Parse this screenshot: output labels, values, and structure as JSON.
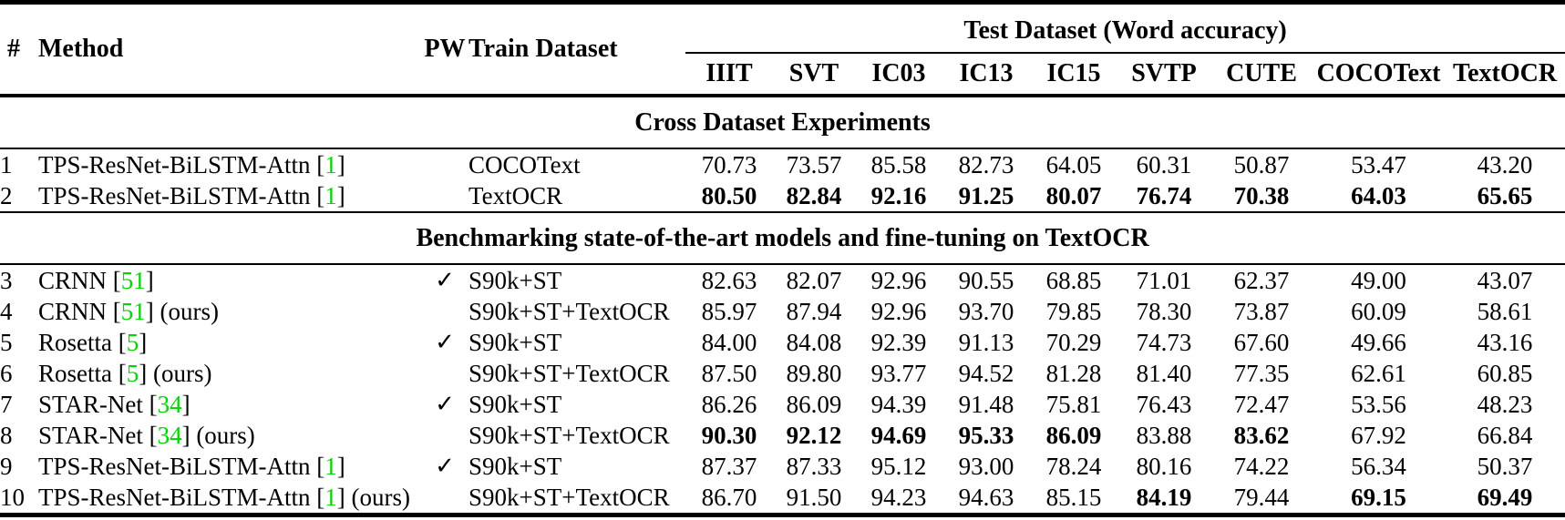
{
  "table": {
    "colors": {
      "citation_green": "#00d500"
    },
    "icons": {
      "pw_check": "✓"
    },
    "header": {
      "num": "#",
      "method": "Method",
      "pw": "PW",
      "train": "Train Dataset",
      "test_group": "Test Dataset (Word accuracy)",
      "test_cols": [
        "IIIT",
        "SVT",
        "IC03",
        "IC13",
        "IC15",
        "SVTP",
        "CUTE",
        "COCOText",
        "TextOCR"
      ]
    },
    "sections": [
      {
        "title": "Cross Dataset Experiments",
        "rows": [
          {
            "num": "1",
            "method": "TPS-ResNet-BiLSTM-Attn",
            "cite": "1",
            "ours": false,
            "pw": false,
            "train": "COCOText",
            "values": [
              "70.73",
              "73.57",
              "85.58",
              "82.73",
              "64.05",
              "60.31",
              "50.87",
              "53.47",
              "43.20"
            ],
            "bold": [
              0,
              0,
              0,
              0,
              0,
              0,
              0,
              0,
              0
            ]
          },
          {
            "num": "2",
            "method": "TPS-ResNet-BiLSTM-Attn",
            "cite": "1",
            "ours": false,
            "pw": false,
            "train": "TextOCR",
            "values": [
              "80.50",
              "82.84",
              "92.16",
              "91.25",
              "80.07",
              "76.74",
              "70.38",
              "64.03",
              "65.65"
            ],
            "bold": [
              1,
              1,
              1,
              1,
              1,
              1,
              1,
              1,
              1
            ]
          }
        ]
      },
      {
        "title": "Benchmarking state-of-the-art models and fine-tuning on TextOCR",
        "rows": [
          {
            "num": "3",
            "method": "CRNN",
            "cite": "51",
            "ours": false,
            "pw": true,
            "train": "S90k+ST",
            "values": [
              "82.63",
              "82.07",
              "92.96",
              "90.55",
              "68.85",
              "71.01",
              "62.37",
              "49.00",
              "43.07"
            ],
            "bold": [
              0,
              0,
              0,
              0,
              0,
              0,
              0,
              0,
              0
            ]
          },
          {
            "num": "4",
            "method": "CRNN",
            "cite": "51",
            "ours": true,
            "pw": false,
            "train": "S90k+ST+TextOCR",
            "values": [
              "85.97",
              "87.94",
              "92.96",
              "93.70",
              "79.85",
              "78.30",
              "73.87",
              "60.09",
              "58.61"
            ],
            "bold": [
              0,
              0,
              0,
              0,
              0,
              0,
              0,
              0,
              0
            ]
          },
          {
            "num": "5",
            "method": "Rosetta",
            "cite": "5",
            "ours": false,
            "pw": true,
            "train": "S90k+ST",
            "values": [
              "84.00",
              "84.08",
              "92.39",
              "91.13",
              "70.29",
              "74.73",
              "67.60",
              "49.66",
              "43.16"
            ],
            "bold": [
              0,
              0,
              0,
              0,
              0,
              0,
              0,
              0,
              0
            ]
          },
          {
            "num": "6",
            "method": "Rosetta",
            "cite": "5",
            "ours": true,
            "pw": false,
            "train": "S90k+ST+TextOCR",
            "values": [
              "87.50",
              "89.80",
              "93.77",
              "94.52",
              "81.28",
              "81.40",
              "77.35",
              "62.61",
              "60.85"
            ],
            "bold": [
              0,
              0,
              0,
              0,
              0,
              0,
              0,
              0,
              0
            ]
          },
          {
            "num": "7",
            "method": "STAR-Net",
            "cite": "34",
            "ours": false,
            "pw": true,
            "train": "S90k+ST",
            "values": [
              "86.26",
              "86.09",
              "94.39",
              "91.48",
              "75.81",
              "76.43",
              "72.47",
              "53.56",
              "48.23"
            ],
            "bold": [
              0,
              0,
              0,
              0,
              0,
              0,
              0,
              0,
              0
            ]
          },
          {
            "num": "8",
            "method": "STAR-Net",
            "cite": "34",
            "ours": true,
            "pw": false,
            "train": "S90k+ST+TextOCR",
            "values": [
              "90.30",
              "92.12",
              "94.69",
              "95.33",
              "86.09",
              "83.88",
              "83.62",
              "67.92",
              "66.84"
            ],
            "bold": [
              1,
              1,
              1,
              1,
              1,
              0,
              1,
              0,
              0
            ]
          },
          {
            "num": "9",
            "method": "TPS-ResNet-BiLSTM-Attn",
            "cite": "1",
            "ours": false,
            "pw": true,
            "train": "S90k+ST",
            "values": [
              "87.37",
              "87.33",
              "95.12",
              "93.00",
              "78.24",
              "80.16",
              "74.22",
              "56.34",
              "50.37"
            ],
            "bold": [
              0,
              0,
              0,
              0,
              0,
              0,
              0,
              0,
              0
            ]
          },
          {
            "num": "10",
            "method": "TPS-ResNet-BiLSTM-Attn",
            "cite": "1",
            "ours": true,
            "pw": false,
            "train": "S90k+ST+TextOCR",
            "values": [
              "86.70",
              "91.50",
              "94.23",
              "94.63",
              "85.15",
              "84.19",
              "79.44",
              "69.15",
              "69.49"
            ],
            "bold": [
              0,
              0,
              0,
              0,
              0,
              1,
              0,
              1,
              1
            ]
          }
        ]
      }
    ],
    "ours_suffix": "(ours)"
  }
}
